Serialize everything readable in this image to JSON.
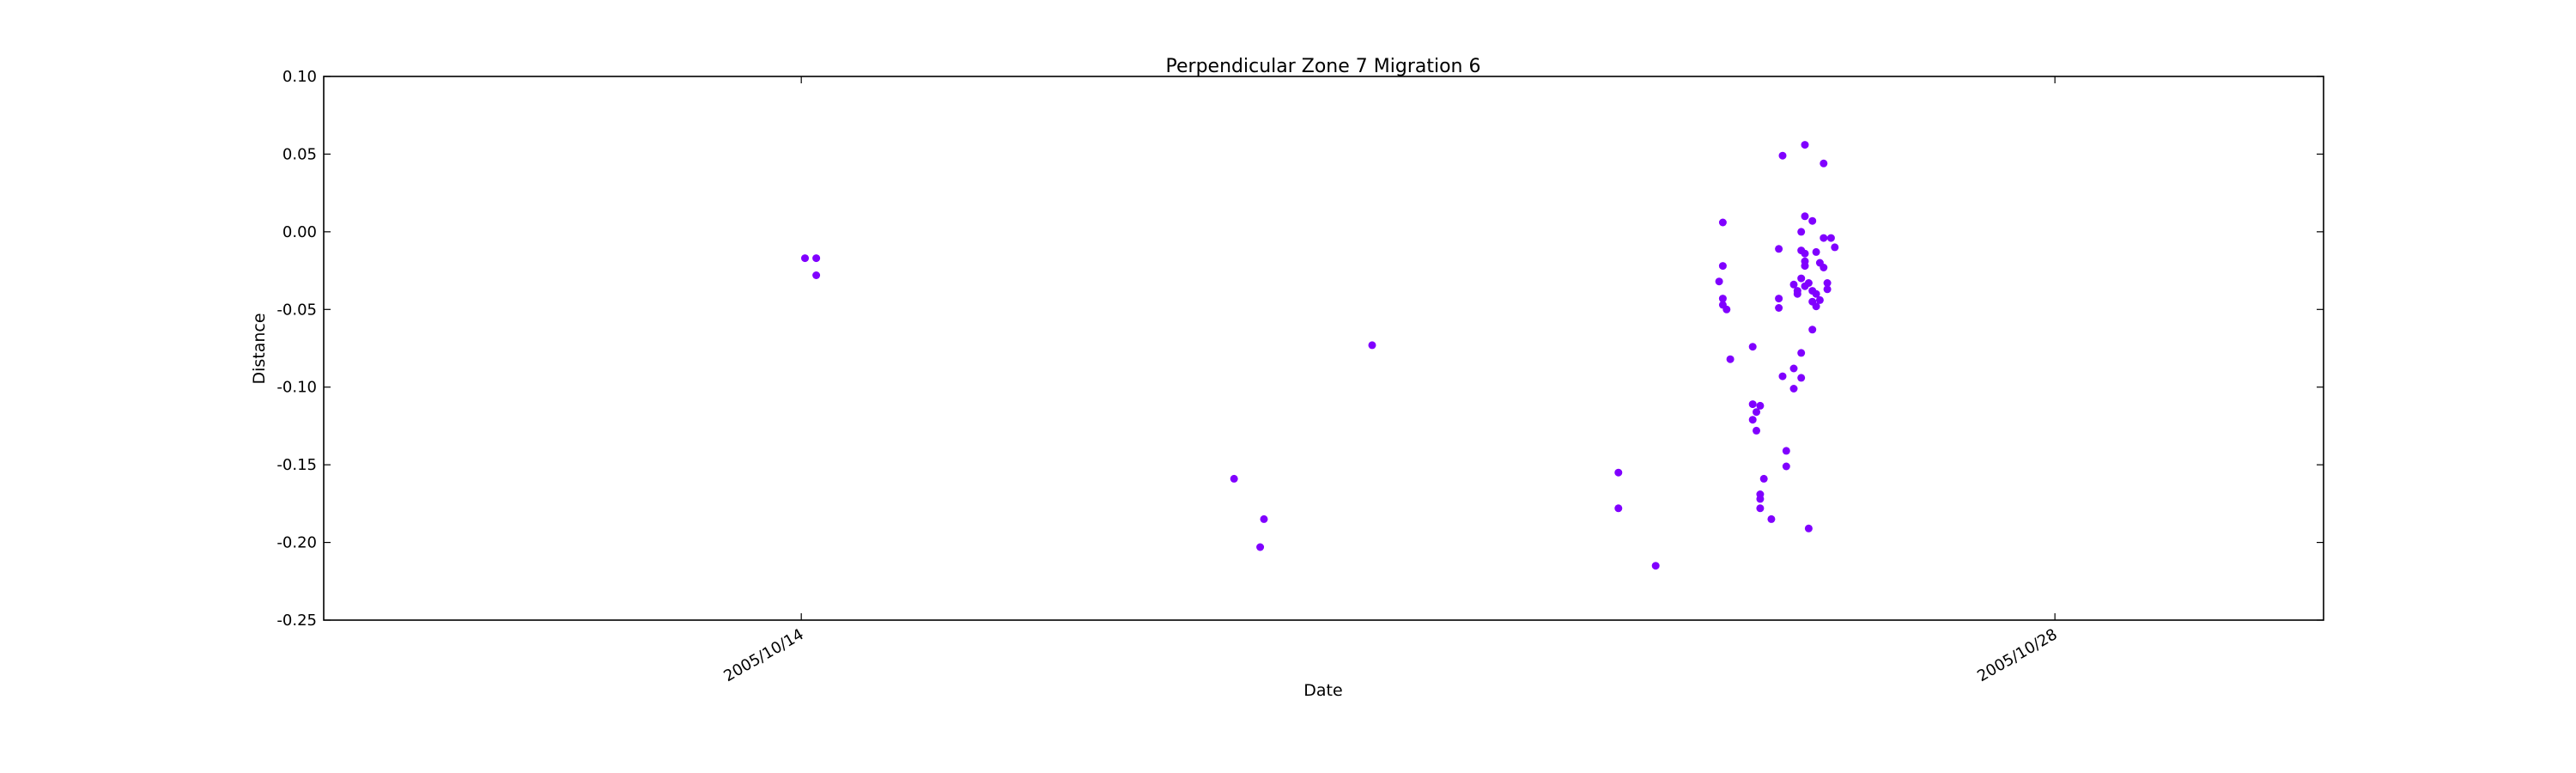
{
  "chart_data": {
    "type": "scatter",
    "title": "Perpendicular Zone 7 Migration 6",
    "xlabel": "Date",
    "ylabel": "Distance",
    "ylim": [
      -0.25,
      0.1
    ],
    "yticks": [
      0.1,
      0.05,
      0.0,
      -0.05,
      -0.1,
      -0.15,
      -0.2,
      -0.25
    ],
    "ytick_labels": [
      "0.10",
      "0.05",
      "0.00",
      "-0.05",
      "-0.10",
      "-0.15",
      "-0.20",
      "-0.25"
    ],
    "xlim": [
      "2005/10/08 16:00",
      "2005/10/31 00:00"
    ],
    "xticks": [
      "2005/10/14",
      "2005/10/28"
    ],
    "xtick_labels": [
      "2005/10/14",
      "2005/10/28"
    ],
    "grid": false,
    "marker_color": "#8000ff",
    "series": [
      {
        "points": [
          {
            "x": "2005/10/14 01:00",
            "y": -0.017
          },
          {
            "x": "2005/10/14 04:00",
            "y": -0.017
          },
          {
            "x": "2005/10/14 04:00",
            "y": -0.028
          },
          {
            "x": "2005/10/18 20:00",
            "y": -0.159
          },
          {
            "x": "2005/10/19 03:00",
            "y": -0.203
          },
          {
            "x": "2005/10/19 04:00",
            "y": -0.185
          },
          {
            "x": "2005/10/20 09:00",
            "y": -0.073
          },
          {
            "x": "2005/10/23 03:00",
            "y": -0.155
          },
          {
            "x": "2005/10/23 03:00",
            "y": -0.178
          },
          {
            "x": "2005/10/23 13:00",
            "y": -0.215
          },
          {
            "x": "2005/10/24 06:00",
            "y": -0.032
          },
          {
            "x": "2005/10/24 07:00",
            "y": 0.006
          },
          {
            "x": "2005/10/24 07:00",
            "y": -0.022
          },
          {
            "x": "2005/10/24 07:00",
            "y": -0.043
          },
          {
            "x": "2005/10/24 07:00",
            "y": -0.047
          },
          {
            "x": "2005/10/24 08:00",
            "y": -0.05
          },
          {
            "x": "2005/10/24 09:00",
            "y": -0.082
          },
          {
            "x": "2005/10/24 15:00",
            "y": -0.074
          },
          {
            "x": "2005/10/24 15:00",
            "y": -0.111
          },
          {
            "x": "2005/10/24 15:00",
            "y": -0.121
          },
          {
            "x": "2005/10/24 16:00",
            "y": -0.116
          },
          {
            "x": "2005/10/24 16:00",
            "y": -0.128
          },
          {
            "x": "2005/10/24 17:00",
            "y": -0.169
          },
          {
            "x": "2005/10/24 17:00",
            "y": -0.172
          },
          {
            "x": "2005/10/24 17:00",
            "y": -0.178
          },
          {
            "x": "2005/10/24 17:00",
            "y": -0.112
          },
          {
            "x": "2005/10/24 18:00",
            "y": -0.159
          },
          {
            "x": "2005/10/24 20:00",
            "y": -0.185
          },
          {
            "x": "2005/10/24 22:00",
            "y": -0.043
          },
          {
            "x": "2005/10/24 22:00",
            "y": -0.049
          },
          {
            "x": "2005/10/24 22:00",
            "y": -0.011
          },
          {
            "x": "2005/10/24 23:00",
            "y": 0.049
          },
          {
            "x": "2005/10/24 23:00",
            "y": -0.093
          },
          {
            "x": "2005/10/25 00:00",
            "y": -0.141
          },
          {
            "x": "2005/10/25 00:00",
            "y": -0.151
          },
          {
            "x": "2005/10/25 02:00",
            "y": -0.088
          },
          {
            "x": "2005/10/25 02:00",
            "y": -0.101
          },
          {
            "x": "2005/10/25 02:00",
            "y": -0.034
          },
          {
            "x": "2005/10/25 03:00",
            "y": -0.038
          },
          {
            "x": "2005/10/25 03:00",
            "y": -0.04
          },
          {
            "x": "2005/10/25 04:00",
            "y": -0.03
          },
          {
            "x": "2005/10/25 04:00",
            "y": -0.012
          },
          {
            "x": "2005/10/25 04:00",
            "y": 0.0
          },
          {
            "x": "2005/10/25 04:00",
            "y": -0.078
          },
          {
            "x": "2005/10/25 04:00",
            "y": -0.094
          },
          {
            "x": "2005/10/25 05:00",
            "y": 0.056
          },
          {
            "x": "2005/10/25 05:00",
            "y": 0.01
          },
          {
            "x": "2005/10/25 05:00",
            "y": -0.014
          },
          {
            "x": "2005/10/25 05:00",
            "y": -0.019
          },
          {
            "x": "2005/10/25 05:00",
            "y": -0.022
          },
          {
            "x": "2005/10/25 05:00",
            "y": -0.035
          },
          {
            "x": "2005/10/25 06:00",
            "y": -0.191
          },
          {
            "x": "2005/10/25 06:00",
            "y": -0.033
          },
          {
            "x": "2005/10/25 07:00",
            "y": 0.007
          },
          {
            "x": "2005/10/25 07:00",
            "y": -0.038
          },
          {
            "x": "2005/10/25 07:00",
            "y": -0.045
          },
          {
            "x": "2005/10/25 07:00",
            "y": -0.063
          },
          {
            "x": "2005/10/25 08:00",
            "y": -0.013
          },
          {
            "x": "2005/10/25 08:00",
            "y": -0.04
          },
          {
            "x": "2005/10/25 08:00",
            "y": -0.048
          },
          {
            "x": "2005/10/25 09:00",
            "y": -0.02
          },
          {
            "x": "2005/10/25 09:00",
            "y": -0.044
          },
          {
            "x": "2005/10/25 10:00",
            "y": 0.044
          },
          {
            "x": "2005/10/25 10:00",
            "y": -0.023
          },
          {
            "x": "2005/10/25 10:00",
            "y": -0.004
          },
          {
            "x": "2005/10/25 11:00",
            "y": -0.033
          },
          {
            "x": "2005/10/25 11:00",
            "y": -0.037
          },
          {
            "x": "2005/10/25 12:00",
            "y": -0.004
          },
          {
            "x": "2005/10/25 13:00",
            "y": -0.01
          }
        ]
      }
    ]
  }
}
